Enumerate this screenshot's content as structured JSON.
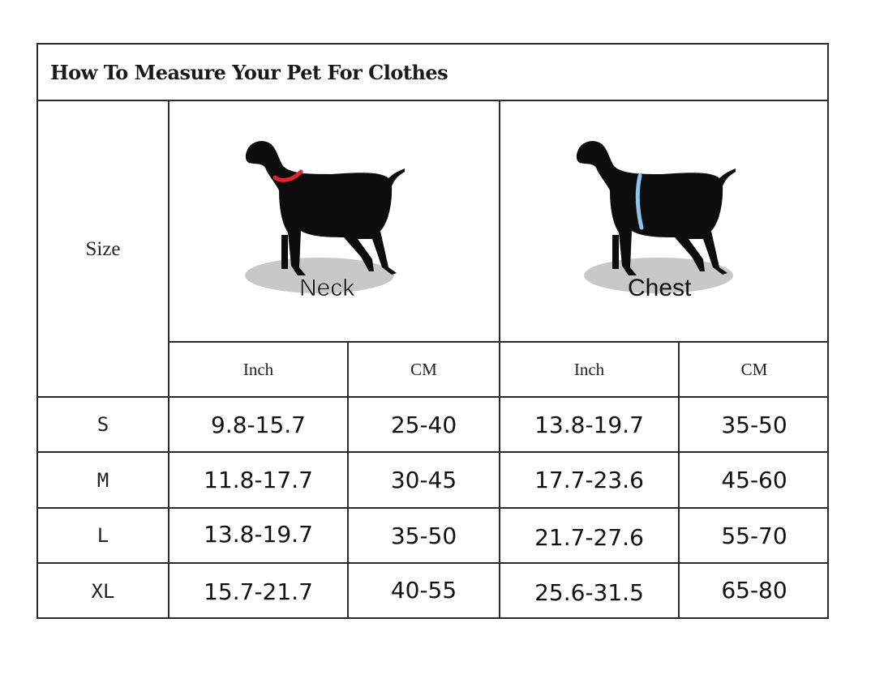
{
  "title": "How To Measure Your Pet For Clothes",
  "size_header": "Size",
  "measurements": [
    {
      "label": "Neck",
      "collar_color": "#e0242a"
    },
    {
      "label": "Chest",
      "strap_color": "#8ec3ea"
    }
  ],
  "units": [
    "Inch",
    "CM",
    "Inch",
    "CM"
  ],
  "rows": [
    {
      "size": "S",
      "neck_inch": "9.8-15.7",
      "neck_cm": "25-40",
      "chest_inch": "13.8-19.7",
      "chest_cm": "35-50"
    },
    {
      "size": "M",
      "neck_inch": "11.8-17.7",
      "neck_cm": "30-45",
      "chest_inch": "17.7-23.6",
      "chest_cm": "45-60"
    },
    {
      "size": "L",
      "neck_inch": "13.8-19.7",
      "neck_cm": "35-50",
      "chest_inch": "21.7-27.6",
      "chest_cm": "55-70"
    },
    {
      "size": "XL",
      "neck_inch": "15.7-21.7",
      "neck_cm": "40-55",
      "chest_inch": "25.6-31.5",
      "chest_cm": "65-80"
    }
  ],
  "colors": {
    "border": "#2a2a2a",
    "dog": "#0d0d0d",
    "shadow": "#c8c8c8"
  }
}
